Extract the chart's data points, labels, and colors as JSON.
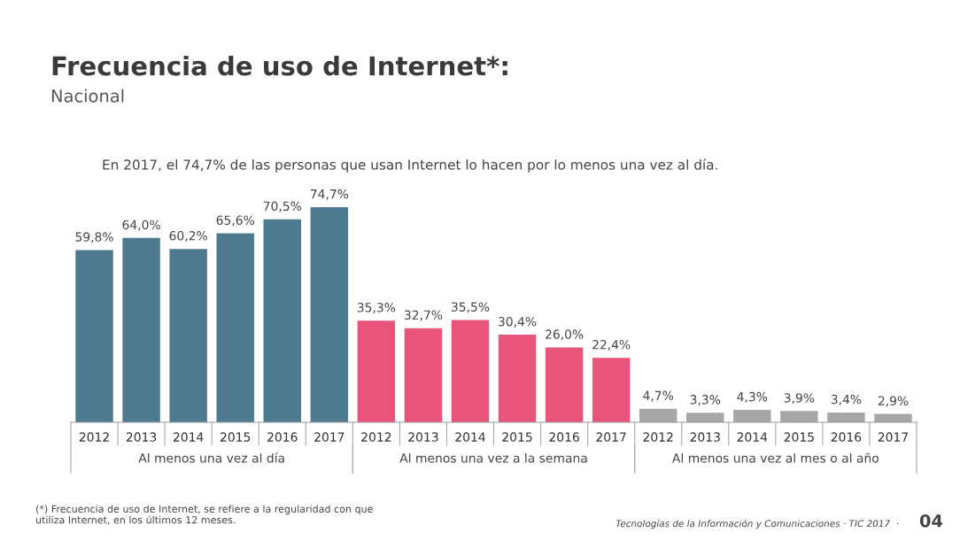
{
  "chart_data": {
    "type": "bar",
    "title": "Frecuencia de uso de Internet*:",
    "subtitle": "Nacional",
    "categories": [
      "2012",
      "2013",
      "2014",
      "2015",
      "2016",
      "2017",
      "2012",
      "2013",
      "2014",
      "2015",
      "2016",
      "2017",
      "2012",
      "2013",
      "2014",
      "2015",
      "2016",
      "2017"
    ],
    "values": [
      59.8,
      64.0,
      60.2,
      65.6,
      70.5,
      74.7,
      35.3,
      32.7,
      35.5,
      30.4,
      26.0,
      22.4,
      4.7,
      3.3,
      4.3,
      3.9,
      3.4,
      2.9
    ],
    "value_labels": [
      "59,8%",
      "64,0%",
      "60,2%",
      "65,6%",
      "70,5%",
      "74,7%",
      "35,3%",
      "32,7%",
      "35,5%",
      "30,4%",
      "26,0%",
      "22,4%",
      "4,7%",
      "3,3%",
      "4,3%",
      "3,9%",
      "3,4%",
      "2,9%"
    ],
    "colors": [
      "#4e7a8f",
      "#4e7a8f",
      "#4e7a8f",
      "#4e7a8f",
      "#4e7a8f",
      "#4e7a8f",
      "#e8547a",
      "#e8547a",
      "#e8547a",
      "#e8547a",
      "#e8547a",
      "#e8547a",
      "#a6a6a6",
      "#a6a6a6",
      "#a6a6a6",
      "#a6a6a6",
      "#a6a6a6",
      "#a6a6a6"
    ],
    "annotations": [
      "Al menos una vez al día",
      "Al menos una vez a la semana",
      "Al menos una vez al mes o al año",
      "En 2017, el 74,7% de las personas que usan Internet lo hacen por lo menos una vez al día.",
      "(*) Frecuencia de uso de Internet, se refiere a la regularidad con que\nutiliza Internet, en los últimos 12 meses.",
      "Tecnologías de la Información y Comunicaciones · TIC 2017  ·",
      "04"
    ],
    "grid": false
  }
}
